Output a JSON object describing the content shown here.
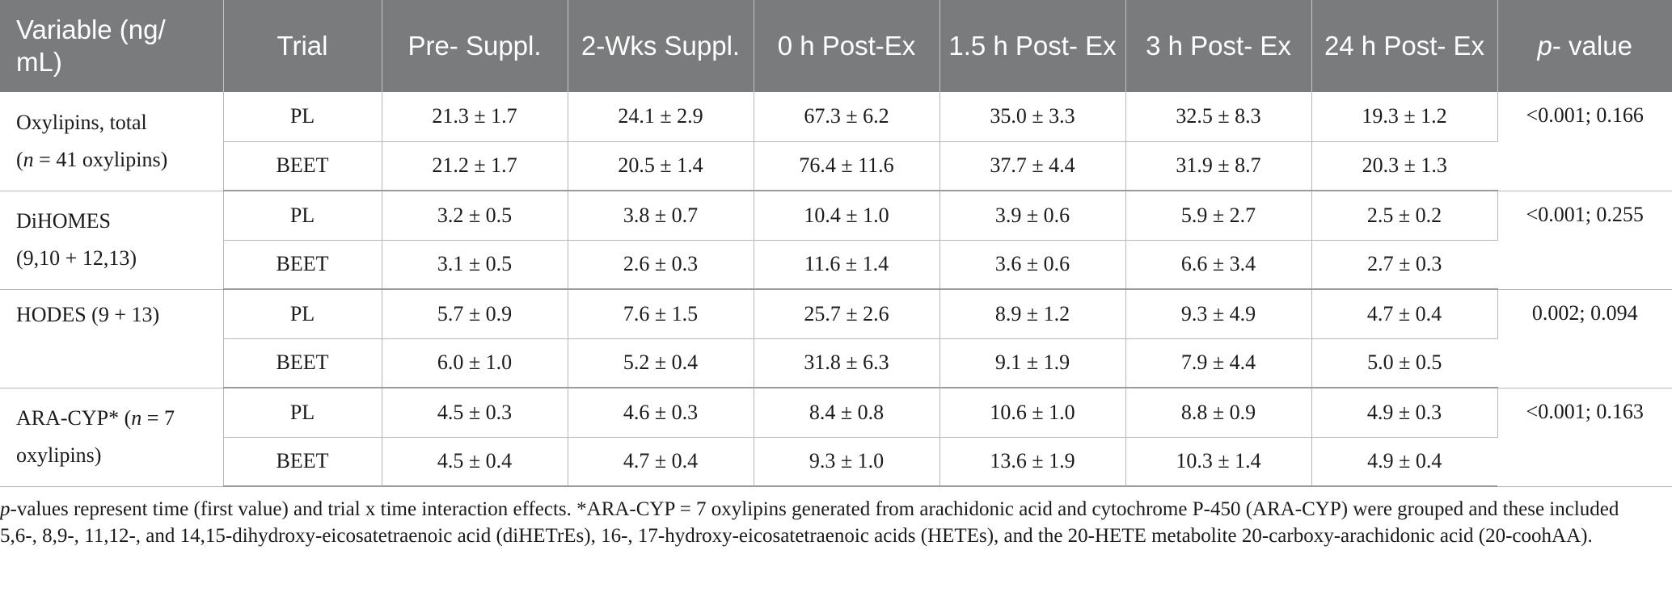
{
  "table": {
    "headers": [
      "Variable (ng/ mL)",
      "Trial",
      "Pre- Suppl.",
      "2-Wks Suppl.",
      "0 h Post-Ex",
      "1.5 h Post- Ex",
      "3 h Post- Ex",
      "24 h Post- Ex",
      "p",
      "- value"
    ],
    "groups": [
      {
        "variable_line1": "Oxylipins, total",
        "variable_line2_italic": "n",
        "variable_line2_rest": " = 41 oxylipins)",
        "variable_line2_prefix": "(",
        "p_value": "<0.001; 0.166",
        "rows": [
          {
            "trial": "PL",
            "values": [
              "21.3 ± 1.7",
              "24.1 ± 2.9",
              "67.3 ± 6.2",
              "35.0 ± 3.3",
              "32.5 ± 8.3",
              "19.3 ± 1.2"
            ]
          },
          {
            "trial": "BEET",
            "values": [
              "21.2 ± 1.7",
              "20.5 ± 1.4",
              "76.4 ± 11.6",
              "37.7 ± 4.4",
              "31.9 ± 8.7",
              "20.3 ± 1.3"
            ]
          }
        ]
      },
      {
        "variable_line1": "DiHOMES",
        "variable_line2_plain": "(9,10 + 12,13)",
        "p_value": "<0.001; 0.255",
        "rows": [
          {
            "trial": "PL",
            "values": [
              "3.2 ± 0.5",
              "3.8 ± 0.7",
              "10.4 ± 1.0",
              "3.9 ± 0.6",
              "5.9 ± 2.7",
              "2.5 ± 0.2"
            ]
          },
          {
            "trial": "BEET",
            "values": [
              "3.1 ± 0.5",
              "2.6 ± 0.3",
              "11.6 ± 1.4",
              "3.6 ± 0.6",
              "6.6 ± 3.4",
              "2.7 ± 0.3"
            ]
          }
        ]
      },
      {
        "variable_line1": "HODES (9 + 13)",
        "p_value": "0.002; 0.094",
        "rows": [
          {
            "trial": "PL",
            "values": [
              "5.7 ± 0.9",
              "7.6 ± 1.5",
              "25.7 ± 2.6",
              "8.9 ± 1.2",
              "9.3 ± 4.9",
              "4.7 ± 0.4"
            ]
          },
          {
            "trial": "BEET",
            "values": [
              "6.0 ± 1.0",
              "5.2 ± 0.4",
              "31.8 ± 6.3",
              "9.1 ± 1.9",
              "7.9 ± 4.4",
              "5.0 ± 0.5"
            ]
          }
        ]
      },
      {
        "variable_line1_prefix": "ARA-CYP* (",
        "variable_line1_italic": "n",
        "variable_line1_rest": " = 7",
        "variable_line2_plain": "oxylipins)",
        "p_value": "<0.001; 0.163",
        "rows": [
          {
            "trial": "PL",
            "values": [
              "4.5 ± 0.3",
              "4.6 ± 0.3",
              "8.4 ± 0.8",
              "10.6 ± 1.0",
              "8.8 ± 0.9",
              "4.9 ± 0.3"
            ]
          },
          {
            "trial": "BEET",
            "values": [
              "4.5 ± 0.4",
              "4.7 ± 0.4",
              "9.3 ± 1.0",
              "13.6 ± 1.9",
              "10.3 ± 1.4",
              "4.9 ± 0.4"
            ]
          }
        ]
      }
    ]
  },
  "footnote": {
    "italic_start": "p",
    "text": "-values represent time (first value) and trial x time interaction effects. *ARA-CYP = 7 oxylipins generated from arachidonic acid and cytochrome P-450 (ARA-CYP) were grouped and these included 5,6-, 8,9-, 11,12-, and 14,15-dihydroxy-eicosatetraenoic acid (diHETrEs), 16-, 17-hydroxy-eicosatetraenoic acids (HETEs), and the 20-HETE metabolite 20-carboxy-arachidonic acid (20-coohAA)."
  }
}
